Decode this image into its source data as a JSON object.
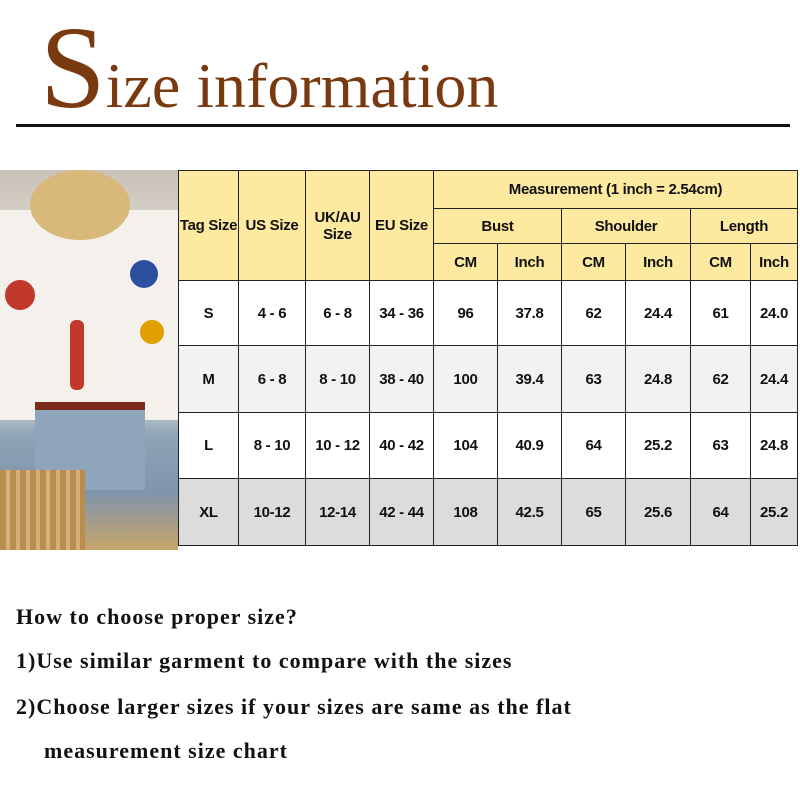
{
  "title": {
    "initial": "S",
    "rest": "ize information"
  },
  "table": {
    "headers": {
      "tag_size": "Tag Size",
      "us_size": "US Size",
      "ukau_size_line1": "UK/AU",
      "ukau_size_line2": "Size",
      "eu_size": "EU Size",
      "measurement": "Measurement  (1 inch = 2.54cm)",
      "bust": "Bust",
      "shoulder": "Shoulder",
      "length": "Length",
      "units": [
        "CM",
        "Inch",
        "CM",
        "Inch",
        "CM",
        "Inch"
      ]
    },
    "rows": [
      [
        "S",
        "4 - 6",
        "6 - 8",
        "34 - 36",
        "96",
        "37.8",
        "62",
        "24.4",
        "61",
        "24.0"
      ],
      [
        "M",
        "6 - 8",
        "8 - 10",
        "38 - 40",
        "100",
        "39.4",
        "63",
        "24.8",
        "62",
        "24.4"
      ],
      [
        "L",
        "8 - 10",
        "10 - 12",
        "40 - 42",
        "104",
        "40.9",
        "64",
        "25.2",
        "63",
        "24.8"
      ],
      [
        "XL",
        "10-12",
        "12-14",
        "42 - 44",
        "108",
        "42.5",
        "65",
        "25.6",
        "64",
        "25.2"
      ]
    ]
  },
  "notes": {
    "heading": "How to choose proper size?",
    "tip1": "1)Use similar garment to compare with the sizes",
    "tip2_line1": "2)Choose larger sizes if your sizes are same as the flat",
    "tip2_line2": "measurement size chart"
  },
  "colors": {
    "title": "#7a3a10",
    "header_bg": "#fde9a0",
    "alt_row": "#f2f2f2",
    "xl_row": "#dcdcdc"
  }
}
